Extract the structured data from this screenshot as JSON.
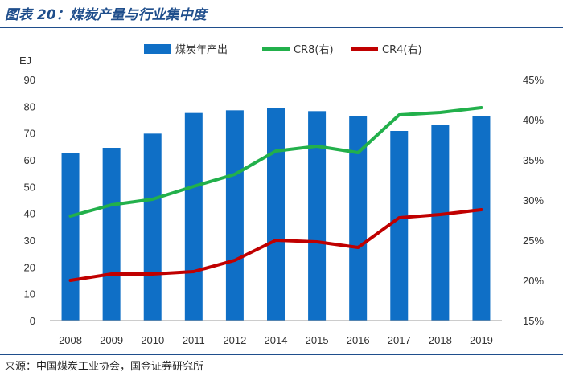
{
  "header": {
    "title": "图表 20：煤炭产量与行业集中度"
  },
  "footer": {
    "source": "来源：中国煤炭工业协会，国金证券研究所"
  },
  "chart_data": {
    "type": "bar",
    "categories": [
      "2008",
      "2009",
      "2010",
      "2011",
      "2012",
      "2014",
      "2015",
      "2016",
      "2017",
      "2018",
      "2019"
    ],
    "series": [
      {
        "name": "煤炭年产出",
        "type": "bar",
        "axis": "left",
        "color": "#0f6fc6",
        "values": [
          62.5,
          64.5,
          69.8,
          77.5,
          78.5,
          79.3,
          78.2,
          76.5,
          70.8,
          73.2,
          76.5
        ]
      },
      {
        "name": "CR8(右)",
        "type": "line",
        "axis": "right",
        "color": "#22b04b",
        "values": [
          28.0,
          29.4,
          30.1,
          31.7,
          33.2,
          36.1,
          36.7,
          35.9,
          40.6,
          40.9,
          41.5
        ]
      },
      {
        "name": "CR4(右)",
        "type": "line",
        "axis": "right",
        "color": "#c00000",
        "values": [
          20.0,
          20.8,
          20.8,
          21.1,
          22.5,
          25.0,
          24.8,
          24.1,
          27.8,
          28.2,
          28.8
        ]
      }
    ],
    "ylabel": "EJ",
    "ylim": [
      0,
      90
    ],
    "y_ticks": [
      "0",
      "10",
      "20",
      "30",
      "40",
      "50",
      "60",
      "70",
      "80",
      "90"
    ],
    "y2lim": [
      15,
      45
    ],
    "y2_ticks": [
      "15%",
      "20%",
      "25%",
      "30%",
      "35%",
      "40%",
      "45%"
    ],
    "legend_position": "top-center",
    "grid": false
  }
}
